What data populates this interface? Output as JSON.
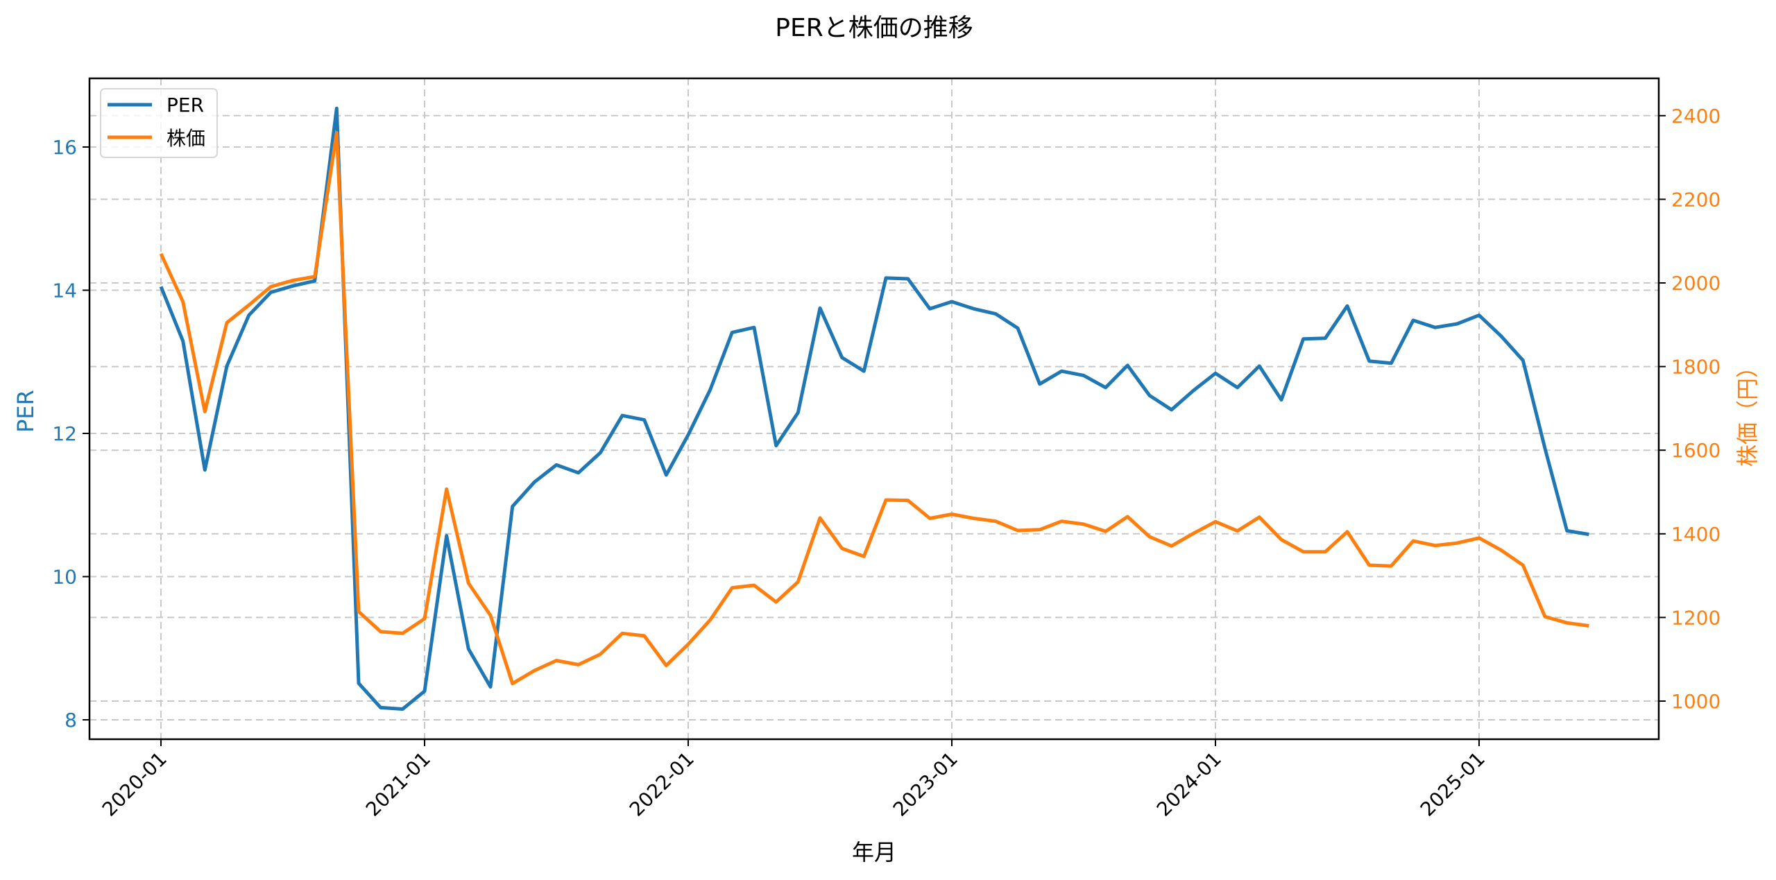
{
  "chart_data": {
    "type": "line",
    "title": "PERと株価の推移",
    "xlabel": "年月",
    "ylabel": "PER",
    "ylabel_right": "株価（円）",
    "x_tick_labels": [
      "2020-01",
      "2021-01",
      "2022-01",
      "2023-01",
      "2024-01",
      "2025-01"
    ],
    "y_ticks_left": [
      8,
      10,
      12,
      14,
      16
    ],
    "y_ticks_right": [
      1000,
      1200,
      1400,
      1600,
      1800,
      2000,
      2200,
      2400
    ],
    "ylim_left": [
      7.75,
      16.95
    ],
    "ylim_right": [
      910,
      2490
    ],
    "grid": true,
    "legend_position": "upper left",
    "x": [
      "2020-01",
      "2020-02",
      "2020-03",
      "2020-04",
      "2020-05",
      "2020-06",
      "2020-07",
      "2020-08",
      "2020-09",
      "2020-10",
      "2020-11",
      "2020-12",
      "2021-01",
      "2021-02",
      "2021-03",
      "2021-04",
      "2021-05",
      "2021-06",
      "2021-07",
      "2021-08",
      "2021-09",
      "2021-10",
      "2021-11",
      "2021-12",
      "2022-01",
      "2022-02",
      "2022-03",
      "2022-04",
      "2022-05",
      "2022-06",
      "2022-07",
      "2022-08",
      "2022-09",
      "2022-10",
      "2022-11",
      "2022-12",
      "2023-01",
      "2023-02",
      "2023-03",
      "2023-04",
      "2023-05",
      "2023-06",
      "2023-07",
      "2023-08",
      "2023-09",
      "2023-10",
      "2023-11",
      "2023-12",
      "2024-01",
      "2024-02",
      "2024-03",
      "2024-04",
      "2024-05",
      "2024-06",
      "2024-07",
      "2024-08",
      "2024-09",
      "2024-10",
      "2024-11",
      "2024-12",
      "2025-01",
      "2025-02",
      "2025-03",
      "2025-04",
      "2025-05",
      "2025-06"
    ],
    "series": [
      {
        "name": "PER",
        "axis": "left",
        "color": "#1f77b4",
        "values": [
          14.05,
          13.29,
          11.49,
          12.94,
          13.65,
          13.97,
          14.06,
          14.13,
          16.54,
          8.51,
          8.17,
          8.15,
          8.4,
          10.57,
          8.99,
          8.46,
          10.98,
          11.32,
          11.56,
          11.45,
          11.73,
          12.25,
          12.19,
          11.42,
          11.98,
          12.61,
          13.41,
          13.48,
          11.83,
          12.29,
          13.75,
          13.06,
          12.87,
          14.17,
          14.16,
          13.74,
          13.84,
          13.74,
          13.67,
          13.47,
          12.69,
          12.87,
          12.81,
          12.64,
          12.95,
          12.53,
          12.33,
          12.6,
          12.84,
          12.64,
          12.94,
          12.47,
          13.32,
          13.33,
          13.78,
          13.01,
          12.98,
          13.58,
          13.48,
          13.53,
          13.65,
          13.36,
          13.02,
          11.79,
          10.64,
          10.59
        ]
      },
      {
        "name": "株価",
        "axis": "right",
        "color": "#ff7f0e",
        "values": [
          2070,
          1955,
          1692,
          1905,
          1947,
          1991,
          2006,
          2015,
          2359,
          1214,
          1166,
          1162,
          1197,
          1507,
          1282,
          1205,
          1042,
          1073,
          1097,
          1087,
          1112,
          1162,
          1156,
          1085,
          1136,
          1194,
          1271,
          1277,
          1237,
          1285,
          1438,
          1365,
          1346,
          1481,
          1480,
          1437,
          1447,
          1437,
          1430,
          1408,
          1410,
          1430,
          1423,
          1406,
          1441,
          1393,
          1371,
          1401,
          1429,
          1407,
          1440,
          1386,
          1357,
          1357,
          1405,
          1325,
          1323,
          1383,
          1372,
          1378,
          1390,
          1361,
          1325,
          1202,
          1187,
          1180
        ]
      }
    ]
  },
  "legend": {
    "items": [
      {
        "label": "PER",
        "color": "#1f77b4"
      },
      {
        "label": "株価",
        "color": "#ff7f0e"
      }
    ]
  }
}
